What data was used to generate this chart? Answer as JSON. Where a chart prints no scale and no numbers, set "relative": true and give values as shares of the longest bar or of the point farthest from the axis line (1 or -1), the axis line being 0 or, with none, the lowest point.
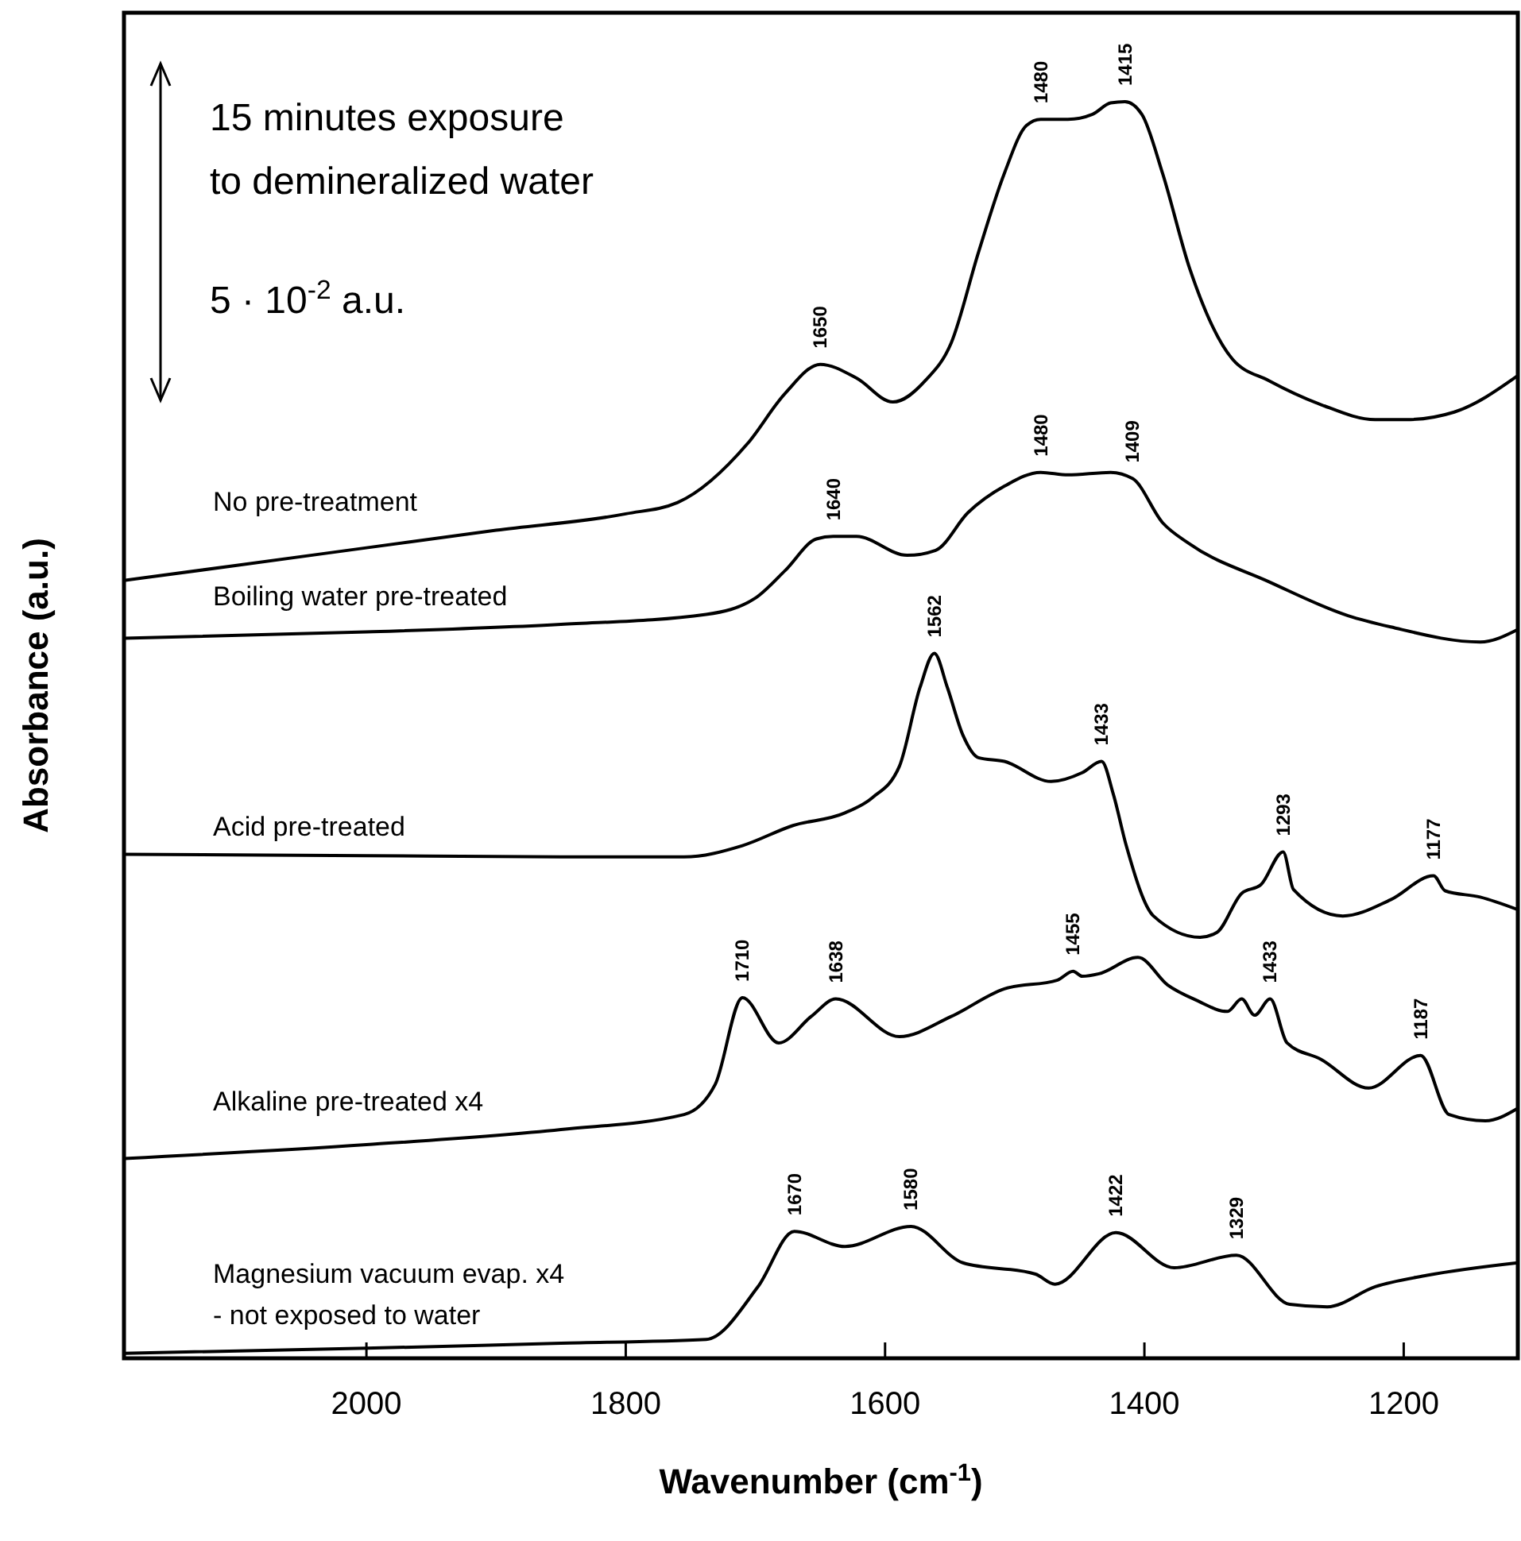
{
  "chart_data": {
    "type": "line",
    "relative": true,
    "xlabel": "Wavenumber (cm$^{-1}$)",
    "ylabel": "Absorbance (a.u.)",
    "xlim": [
      2187,
      1112
    ],
    "xticks": [
      2000,
      1800,
      1600,
      1400,
      1200
    ],
    "grid": false,
    "line_style": "solid",
    "series": [
      {
        "name": "No pre-treatment",
        "color": "#000000",
        "x": [
          2187,
          2100,
          2000,
          1900,
          1800,
          1760,
          1706,
          1677,
          1650,
          1622,
          1594,
          1569,
          1549,
          1528,
          1508,
          1491,
          1480,
          1459,
          1440,
          1426,
          1415,
          1402,
          1386,
          1365,
          1332,
          1304,
          1264,
          1222,
          1198,
          1161,
          1112
        ],
        "values": [
          0.619,
          0.631,
          0.645,
          0.659,
          0.672,
          0.681,
          0.728,
          0.768,
          0.791,
          0.78,
          0.761,
          0.778,
          0.808,
          0.88,
          0.943,
          0.981,
          0.986,
          0.986,
          0.99,
          0.999,
          1.0,
          0.99,
          0.943,
          0.867,
          0.795,
          0.778,
          0.759,
          0.747,
          0.747,
          0.753,
          0.782
        ]
      },
      {
        "name": "Boiling water pre-treated",
        "color": "#000000",
        "x": [
          2187,
          2000,
          1850,
          1738,
          1700,
          1677,
          1653,
          1640,
          1622,
          1583,
          1561,
          1536,
          1508,
          1480,
          1459,
          1426,
          1409,
          1386,
          1365,
          1304,
          1243,
          1210,
          1141,
          1112
        ],
        "values": [
          0.573,
          0.578,
          0.584,
          0.592,
          0.605,
          0.627,
          0.652,
          0.654,
          0.654,
          0.639,
          0.643,
          0.673,
          0.694,
          0.705,
          0.703,
          0.705,
          0.7,
          0.665,
          0.648,
          0.618,
          0.591,
          0.582,
          0.57,
          0.58
        ]
      },
      {
        "name": "Acid pre-treated",
        "color": "#000000",
        "x": [
          2187,
          2000,
          1850,
          1755,
          1710,
          1671,
          1631,
          1610,
          1589,
          1573,
          1562,
          1552,
          1540,
          1528,
          1508,
          1472,
          1448,
          1433,
          1424,
          1414,
          1393,
          1357,
          1344,
          1325,
          1310,
          1293,
          1285,
          1247,
          1210,
          1177,
          1168,
          1141,
          1112
        ],
        "values": [
          0.401,
          0.4,
          0.399,
          0.399,
          0.408,
          0.424,
          0.434,
          0.446,
          0.471,
          0.534,
          0.561,
          0.534,
          0.496,
          0.478,
          0.475,
          0.459,
          0.466,
          0.475,
          0.449,
          0.408,
          0.352,
          0.335,
          0.339,
          0.37,
          0.377,
          0.403,
          0.373,
          0.352,
          0.365,
          0.384,
          0.372,
          0.367,
          0.357
        ]
      },
      {
        "name": "Alkaline pre-treated x4",
        "color": "#000000",
        "x": [
          2187,
          2000,
          1850,
          1755,
          1731,
          1710,
          1682,
          1657,
          1638,
          1589,
          1549,
          1508,
          1467,
          1455,
          1448,
          1435,
          1405,
          1382,
          1360,
          1336,
          1325,
          1315,
          1303,
          1290,
          1264,
          1227,
          1187,
          1165,
          1137,
          1112
        ],
        "values": [
          0.159,
          0.17,
          0.182,
          0.194,
          0.218,
          0.287,
          0.251,
          0.272,
          0.286,
          0.256,
          0.272,
          0.294,
          0.301,
          0.308,
          0.304,
          0.306,
          0.319,
          0.297,
          0.285,
          0.276,
          0.286,
          0.273,
          0.286,
          0.251,
          0.238,
          0.215,
          0.241,
          0.194,
          0.189,
          0.199
        ]
      },
      {
        "name": "Magnesium vacuum evap. x4\n- not exposed to water",
        "color": "#000000",
        "x": [
          2187,
          2000,
          1850,
          1738,
          1698,
          1670,
          1631,
          1580,
          1540,
          1484,
          1469,
          1422,
          1377,
          1329,
          1288,
          1259,
          1222,
          1182,
          1112
        ],
        "values": [
          0.004,
          0.008,
          0.012,
          0.015,
          0.057,
          0.101,
          0.089,
          0.105,
          0.076,
          0.067,
          0.059,
          0.1,
          0.072,
          0.082,
          0.043,
          0.041,
          0.057,
          0.066,
          0.076
        ]
      }
    ],
    "annotations": [
      "15 minutes exposure\nto demineralized water",
      "5 · 10$^{-2}$ a.u.",
      {
        "text": "1650",
        "x": 1650,
        "y": 0.791
      },
      {
        "text": "1480",
        "x": 1480,
        "y": 0.986
      },
      {
        "text": "1415",
        "x": 1415,
        "y": 1.0
      },
      {
        "text": "1640",
        "x": 1640,
        "y": 0.654
      },
      {
        "text": "1480",
        "x": 1480,
        "y": 0.705
      },
      {
        "text": "1409",
        "x": 1409,
        "y": 0.7
      },
      {
        "text": "1562",
        "x": 1562,
        "y": 0.561
      },
      {
        "text": "1433",
        "x": 1433,
        "y": 0.475
      },
      {
        "text": "1293",
        "x": 1293,
        "y": 0.403
      },
      {
        "text": "1177",
        "x": 1177,
        "y": 0.384
      },
      {
        "text": "1710",
        "x": 1710,
        "y": 0.287
      },
      {
        "text": "1638",
        "x": 1638,
        "y": 0.286
      },
      {
        "text": "1455",
        "x": 1455,
        "y": 0.308
      },
      {
        "text": "1433",
        "x": 1303,
        "y": 0.286
      },
      {
        "text": "1187",
        "x": 1187,
        "y": 0.241
      },
      {
        "text": "1670",
        "x": 1670,
        "y": 0.101
      },
      {
        "text": "1580",
        "x": 1580,
        "y": 0.105
      },
      {
        "text": "1422",
        "x": 1422,
        "y": 0.1
      },
      {
        "text": "1329",
        "x": 1329,
        "y": 0.082
      }
    ]
  }
}
